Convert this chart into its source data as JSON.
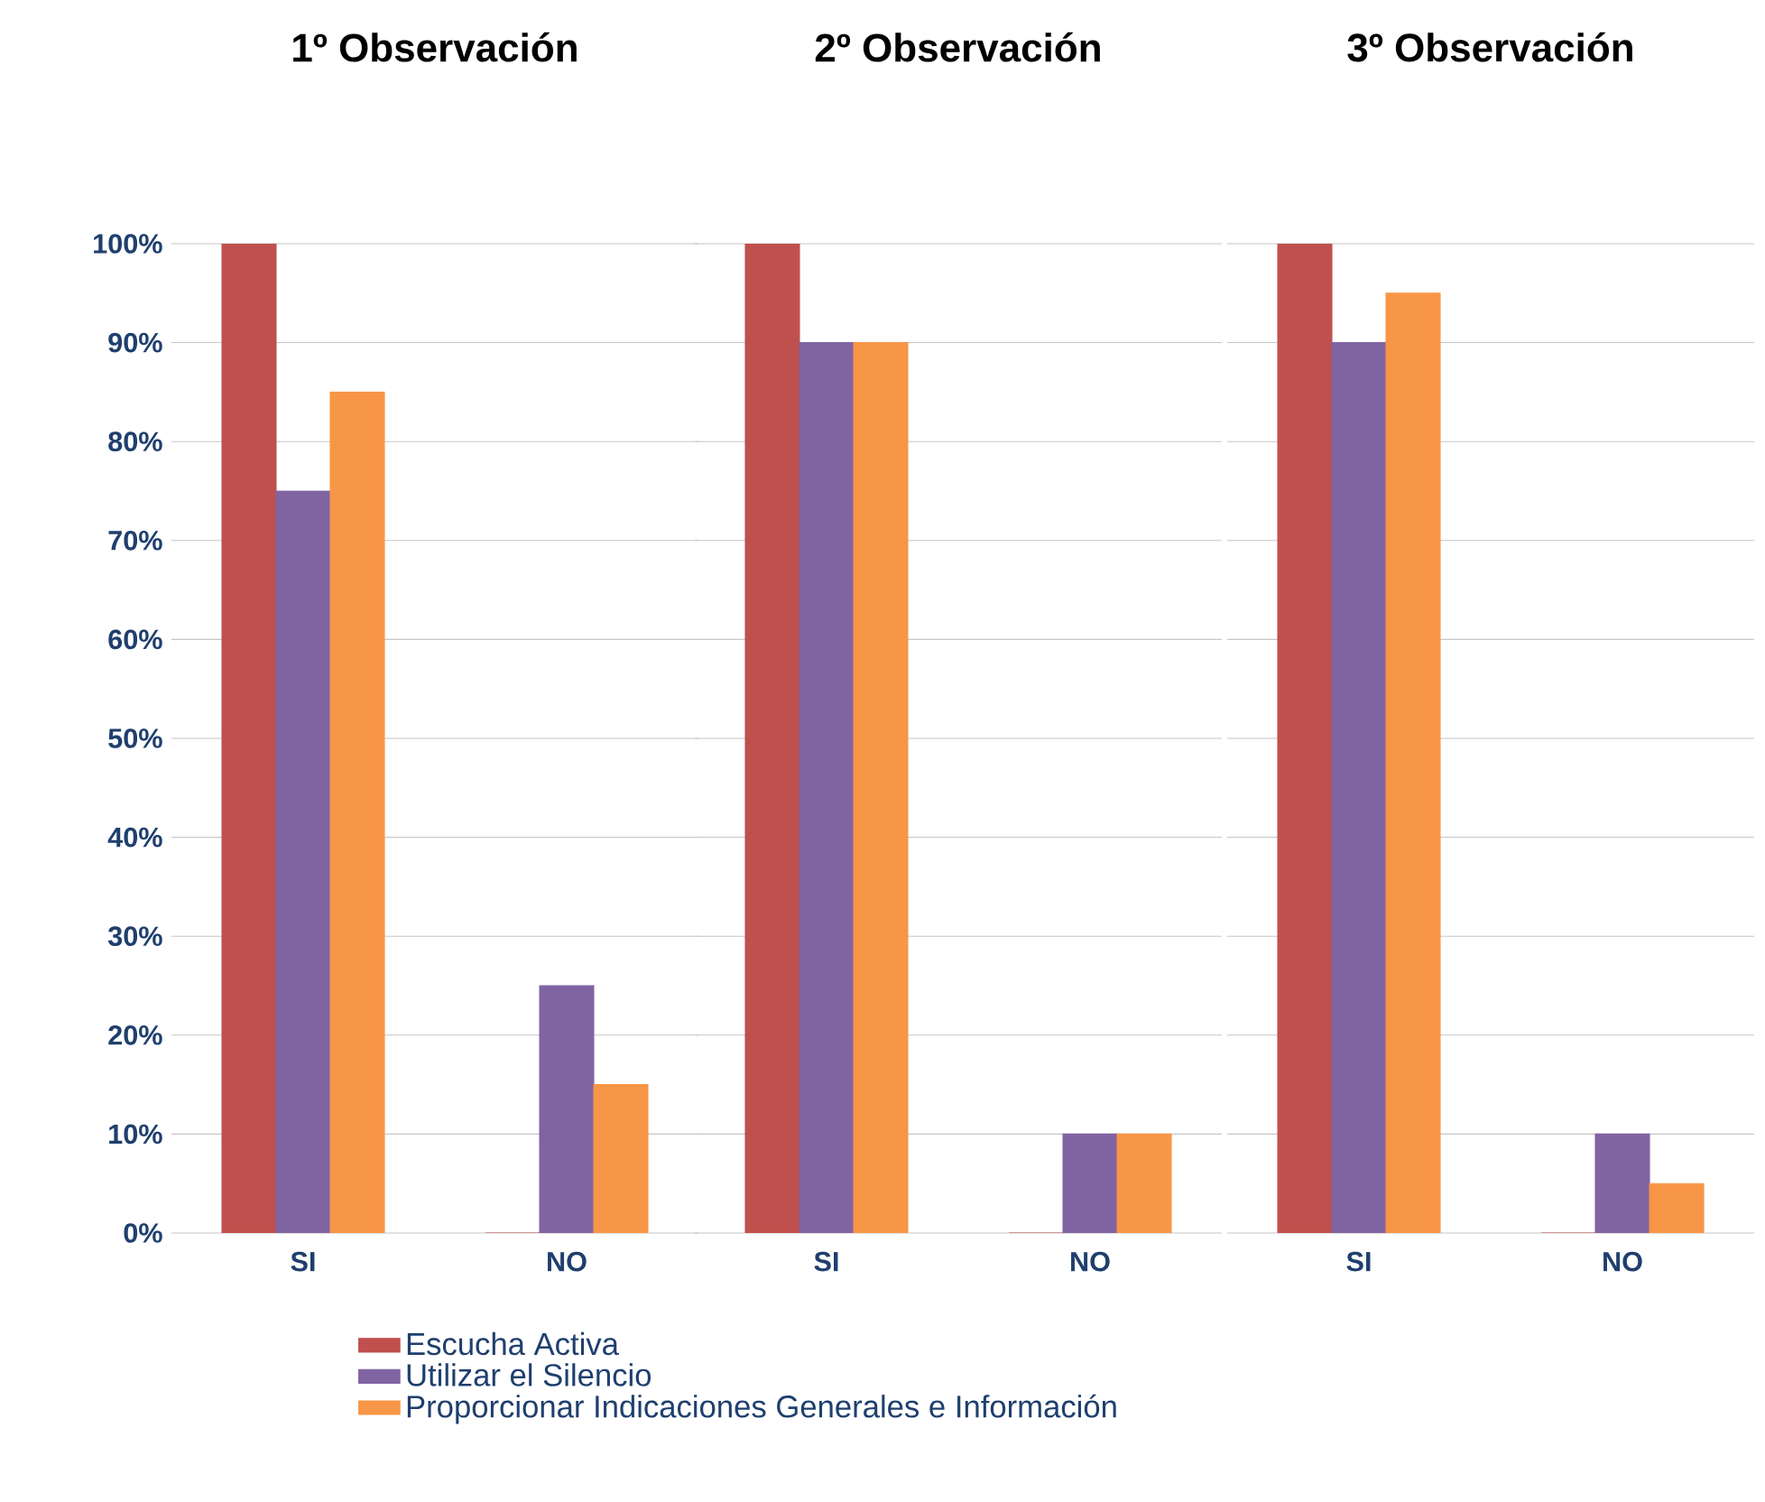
{
  "chart_data": [
    {
      "type": "bar",
      "title": "1º Observación",
      "categories": [
        "SI",
        "NO"
      ],
      "series": [
        {
          "name": "Escucha Activa",
          "color": "#c0504d",
          "values": [
            100,
            0
          ]
        },
        {
          "name": "Utilizar el Silencio",
          "color": "#8064a2",
          "values": [
            75,
            25
          ]
        },
        {
          "name": "Proporcionar Indicaciones Generales e Información",
          "color": "#f79646",
          "values": [
            85,
            15
          ]
        }
      ],
      "ylim": [
        0,
        100
      ],
      "yticks": [
        {
          "value": 0,
          "label": "0%"
        },
        {
          "value": 10,
          "label": "10%"
        },
        {
          "value": 20,
          "label": "20%"
        },
        {
          "value": 30,
          "label": "30%"
        },
        {
          "value": 40,
          "label": "40%"
        },
        {
          "value": 50,
          "label": "50%"
        },
        {
          "value": 60,
          "label": "60%"
        },
        {
          "value": 70,
          "label": "70%"
        },
        {
          "value": 80,
          "label": "80%"
        },
        {
          "value": 90,
          "label": "90%"
        },
        {
          "value": 100,
          "label": "100%"
        }
      ],
      "grid": "y",
      "legend": "bottom"
    },
    {
      "type": "bar",
      "title": "2º Observación",
      "categories": [
        "SI",
        "NO"
      ],
      "series": [
        {
          "color": "#c0504d",
          "values": [
            100,
            0
          ]
        },
        {
          "color": "#8064a2",
          "values": [
            90,
            10
          ]
        },
        {
          "color": "#f79646",
          "values": [
            90,
            10
          ]
        }
      ],
      "ylim": [
        0,
        100
      ],
      "yticks": [
        {
          "value": 0,
          "label": null
        },
        {
          "value": 10,
          "label": null
        },
        {
          "value": 20,
          "label": null
        },
        {
          "value": 30,
          "label": null
        },
        {
          "value": 40,
          "label": null
        },
        {
          "value": 50,
          "label": null
        },
        {
          "value": 60,
          "label": null
        },
        {
          "value": 70,
          "label": null
        },
        {
          "value": 80,
          "label": null
        },
        {
          "value": 90,
          "label": null
        },
        {
          "value": 100,
          "label": null
        }
      ],
      "grid": "y",
      "tick_labels": "x"
    },
    {
      "type": "bar",
      "title": "3º Observación",
      "categories": [
        "SI",
        "NO"
      ],
      "series": [
        {
          "color": "#c0504d",
          "values": [
            100,
            0
          ]
        },
        {
          "color": "#8064a2",
          "values": [
            90,
            10
          ]
        },
        {
          "color": "#f79646",
          "values": [
            95,
            5
          ]
        }
      ],
      "ylim": [
        0,
        100
      ],
      "yticks": [
        {
          "value": 0,
          "label": null
        },
        {
          "value": 10,
          "label": null
        },
        {
          "value": 20,
          "label": null
        },
        {
          "value": 30,
          "label": null
        },
        {
          "value": 40,
          "label": null
        },
        {
          "value": 50,
          "label": null
        },
        {
          "value": 60,
          "label": null
        },
        {
          "value": 70,
          "label": null
        },
        {
          "value": 80,
          "label": null
        },
        {
          "value": 90,
          "label": null
        },
        {
          "value": 100,
          "label": null
        }
      ],
      "grid": "y",
      "tick_labels": "x"
    }
  ]
}
